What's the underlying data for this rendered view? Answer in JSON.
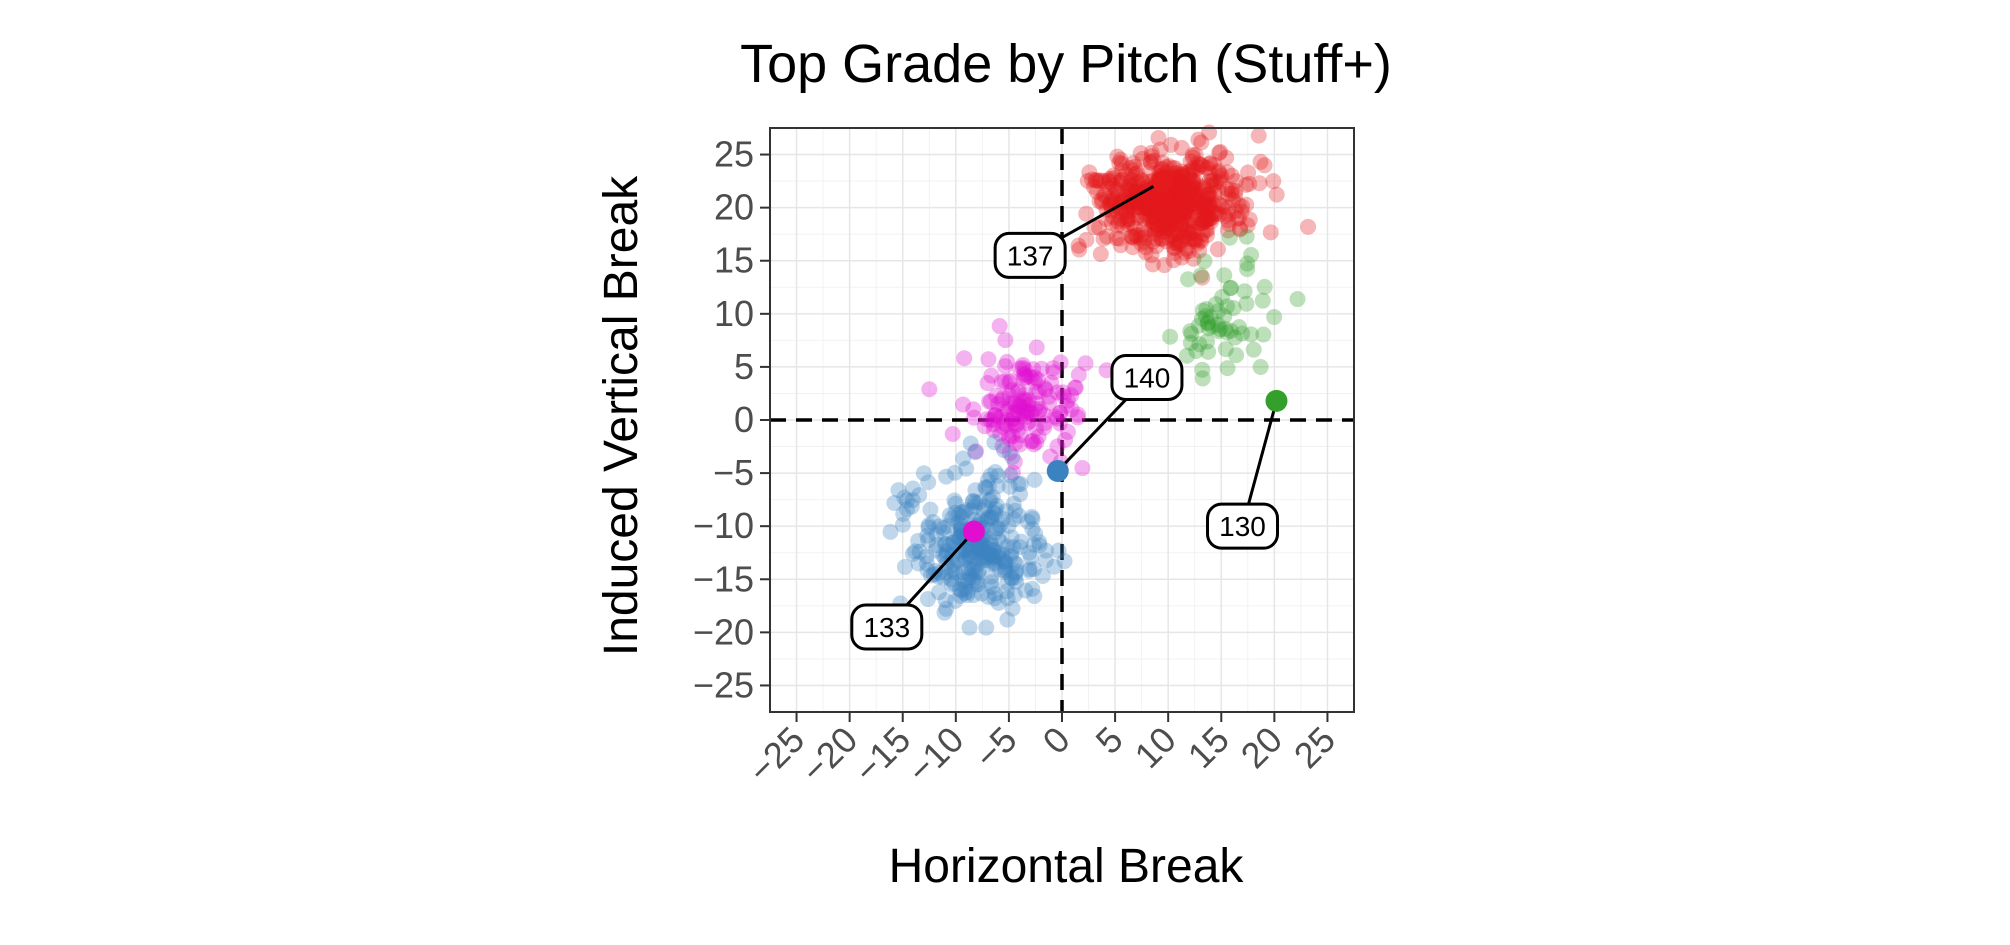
{
  "chart_data": {
    "type": "scatter",
    "title": "Top Grade by Pitch (Stuff+)",
    "xlabel": "Horizontal Break",
    "ylabel": "Induced Vertical Break",
    "xlim": [
      -27.5,
      27.5
    ],
    "ylim": [
      -27.5,
      27.5
    ],
    "xticks": [
      -25,
      -20,
      -15,
      -10,
      -5,
      0,
      5,
      10,
      15,
      20,
      25
    ],
    "yticks": [
      -25,
      -20,
      -15,
      -10,
      -5,
      0,
      5,
      10,
      15,
      20,
      25
    ],
    "x_tick_labels": [
      "−25",
      "−20",
      "−15",
      "−10",
      "−5",
      "0",
      "5",
      "10",
      "15",
      "20",
      "25"
    ],
    "y_tick_labels": [
      "−25",
      "−20",
      "−15",
      "−10",
      "−5",
      "0",
      "5",
      "10",
      "15",
      "20",
      "25"
    ],
    "grid": true,
    "reference_lines": {
      "x": 0,
      "y": 0
    },
    "series": [
      {
        "color": "#e41a1c",
        "cluster_center": [
          10,
          20.5
        ],
        "cluster_spread": [
          3.5,
          2.2
        ],
        "approx_points": 600,
        "highlight": {
          "x": 9.5,
          "y": 22.5,
          "label": "137",
          "label_x": -3,
          "label_y": 15.5
        }
      },
      {
        "color": "#33a02c",
        "cluster_center": [
          15.5,
          10
        ],
        "cluster_spread": [
          2.4,
          3.0
        ],
        "approx_points": 60,
        "highlight": {
          "x": 20.2,
          "y": 1.8,
          "label": "130",
          "label_x": 17,
          "label_y": -10
        }
      },
      {
        "color": "#e00fd0",
        "cluster_center": [
          -3.5,
          1
        ],
        "cluster_spread": [
          2.8,
          2.6
        ],
        "approx_points": 150,
        "highlight": {
          "x": -8.3,
          "y": -10.5,
          "label": "133",
          "label_x": -16.5,
          "label_y": -19.5
        }
      },
      {
        "color": "#3a83c0",
        "cluster_center": [
          -8,
          -11.5
        ],
        "cluster_spread": [
          3.2,
          3.3
        ],
        "approx_points": 300,
        "highlight": {
          "x": -0.4,
          "y": -4.8,
          "label": "140",
          "label_x": 8,
          "label_y": 4
        }
      }
    ]
  }
}
